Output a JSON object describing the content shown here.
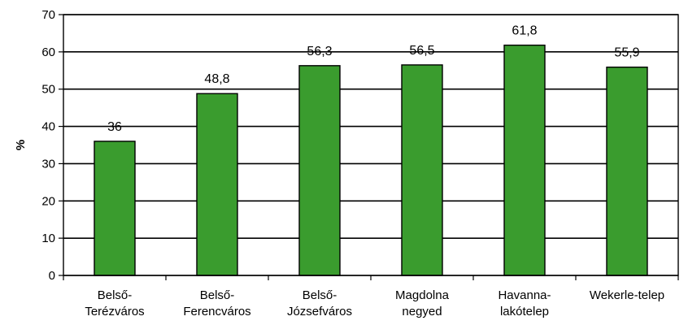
{
  "chart_data": {
    "type": "bar",
    "categories": [
      [
        "Belső-",
        "Terézváros"
      ],
      [
        "Belső-",
        "Ferencváros"
      ],
      [
        "Belső-",
        "Józsefváros"
      ],
      [
        "Magdolna",
        "negyed"
      ],
      [
        "Havanna-",
        "lakótelep"
      ],
      [
        "Wekerle-telep"
      ]
    ],
    "values": [
      36,
      48.8,
      56.3,
      56.5,
      61.8,
      55.9
    ],
    "data_labels": [
      "36",
      "48,8",
      "56,3",
      "56,5",
      "61,8",
      "55,9"
    ],
    "ylabel": "%",
    "ylim": [
      0,
      70
    ],
    "yticks": [
      0,
      10,
      20,
      30,
      40,
      50,
      60,
      70
    ],
    "grid": true,
    "bar_color": "#3a9c2e",
    "bar_edge_color": "#000000"
  }
}
